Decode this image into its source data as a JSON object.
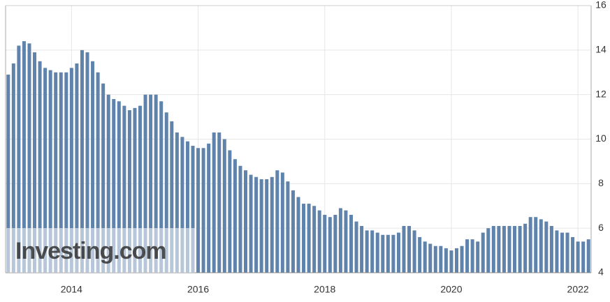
{
  "chart_data": {
    "type": "bar",
    "watermark": "Investing.com",
    "categories": [
      null,
      null,
      null,
      null,
      null,
      null,
      null,
      null,
      null,
      null,
      null,
      null,
      "2014",
      null,
      null,
      null,
      null,
      null,
      null,
      null,
      null,
      null,
      null,
      null,
      null,
      null,
      null,
      null,
      null,
      null,
      null,
      null,
      null,
      null,
      null,
      null,
      "2016",
      null,
      null,
      null,
      null,
      null,
      null,
      null,
      null,
      null,
      null,
      null,
      null,
      null,
      null,
      null,
      null,
      null,
      null,
      null,
      null,
      null,
      null,
      null,
      "2018",
      null,
      null,
      null,
      null,
      null,
      null,
      null,
      null,
      null,
      null,
      null,
      null,
      null,
      null,
      null,
      null,
      null,
      null,
      null,
      null,
      null,
      null,
      null,
      "2020",
      null,
      null,
      null,
      null,
      null,
      null,
      null,
      null,
      null,
      null,
      null,
      null,
      null,
      null,
      null,
      null,
      null,
      null,
      null,
      null,
      null,
      null,
      null,
      "2022",
      null,
      null
    ],
    "values": [
      12.9,
      13.4,
      14.2,
      14.4,
      14.3,
      13.9,
      13.5,
      13.2,
      13.1,
      13.0,
      13.0,
      13.0,
      13.2,
      13.4,
      14.0,
      13.9,
      13.5,
      13.0,
      12.5,
      12.0,
      11.8,
      11.7,
      11.5,
      11.3,
      11.4,
      11.5,
      12.0,
      12.0,
      12.0,
      11.7,
      11.2,
      10.8,
      10.3,
      10.1,
      9.9,
      9.7,
      9.6,
      9.6,
      9.8,
      10.3,
      10.3,
      10.0,
      9.5,
      9.1,
      8.8,
      8.6,
      8.4,
      8.3,
      8.2,
      8.2,
      8.3,
      8.6,
      8.5,
      8.1,
      7.7,
      7.4,
      7.1,
      7.1,
      7.0,
      6.8,
      6.6,
      6.5,
      6.6,
      6.9,
      6.8,
      6.6,
      6.3,
      6.1,
      5.9,
      5.9,
      5.8,
      5.7,
      5.7,
      5.7,
      5.8,
      6.1,
      6.1,
      5.9,
      5.6,
      5.4,
      5.3,
      5.2,
      5.2,
      5.1,
      5.0,
      5.1,
      5.2,
      5.5,
      5.5,
      5.4,
      5.8,
      6.0,
      6.1,
      6.1,
      6.1,
      6.1,
      6.1,
      6.1,
      6.2,
      6.5,
      6.5,
      6.4,
      6.3,
      6.1,
      5.9,
      5.8,
      5.8,
      5.6,
      5.4,
      5.4,
      5.5
    ],
    "color": "#5f83ab",
    "ylim": [
      4,
      16
    ],
    "yticks": [
      4,
      6,
      8,
      10,
      12,
      14,
      16
    ],
    "grid": true
  }
}
